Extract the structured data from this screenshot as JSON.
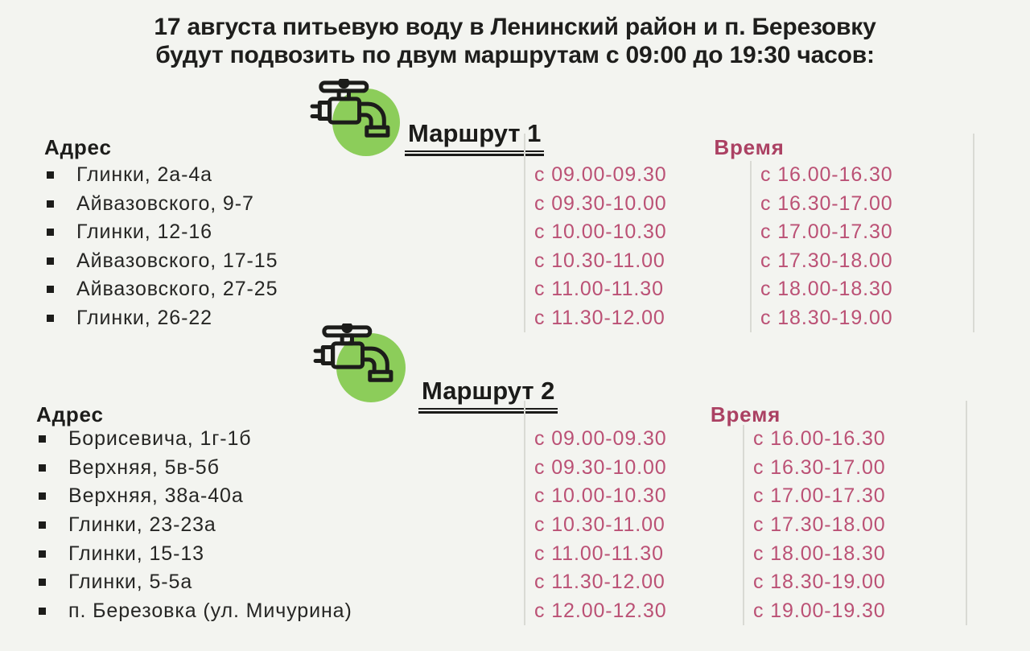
{
  "title": {
    "line1": "17 августа питьевую воду в Ленинский район и п. Березовку",
    "line2": "будут подвозить по двум маршрутам с 09:00 до 19:30 часов:"
  },
  "colors": {
    "background": "#f3f4f0",
    "ink": "#1e1e1c",
    "accent_green": "#8ccd5a",
    "accent_pink": "#bb5175",
    "accent_pink_dark": "#ab4163",
    "divider": "#d9dad4"
  },
  "routes": [
    {
      "title": "Маршрут 1",
      "icon": "water-tap-icon",
      "address_header": "Адрес",
      "time_header": "Время",
      "rows": [
        {
          "address": "Глинки, 2а-4а",
          "time1": "с 09.00-09.30",
          "time2": "с 16.00-16.30"
        },
        {
          "address": "Айвазовского, 9-7",
          "time1": "с 09.30-10.00",
          "time2": "с 16.30-17.00"
        },
        {
          "address": "Глинки, 12-16",
          "time1": "с 10.00-10.30",
          "time2": "с 17.00-17.30"
        },
        {
          "address": "Айвазовского, 17-15",
          "time1": "с 10.30-11.00",
          "time2": "с 17.30-18.00"
        },
        {
          "address": "Айвазовского, 27-25",
          "time1": "с 11.00-11.30",
          "time2": "с 18.00-18.30"
        },
        {
          "address": "Глинки, 26-22",
          "time1": "с 11.30-12.00",
          "time2": "с 18.30-19.00"
        }
      ]
    },
    {
      "title": "Маршрут 2",
      "icon": "water-tap-icon",
      "address_header": "Адрес",
      "time_header": "Время",
      "rows": [
        {
          "address": "Борисевича, 1г-1б",
          "time1": "с 09.00-09.30",
          "time2": "с 16.00-16.30"
        },
        {
          "address": "Верхняя, 5в-5б",
          "time1": "с 09.30-10.00",
          "time2": "с 16.30-17.00"
        },
        {
          "address": "Верхняя, 38а-40а",
          "time1": "с 10.00-10.30",
          "time2": "с 17.00-17.30"
        },
        {
          "address": "Глинки, 23-23а",
          "time1": "с 10.30-11.00",
          "time2": "с 17.30-18.00"
        },
        {
          "address": "Глинки, 15-13",
          "time1": "с 11.00-11.30",
          "time2": "с 18.00-18.30"
        },
        {
          "address": "Глинки, 5-5а",
          "time1": "с 11.30-12.00",
          "time2": "с 18.30-19.00"
        },
        {
          "address": "п. Березовка (ул. Мичурина)",
          "time1": "с 12.00-12.30",
          "time2": "с 19.00-19.30"
        }
      ]
    }
  ]
}
